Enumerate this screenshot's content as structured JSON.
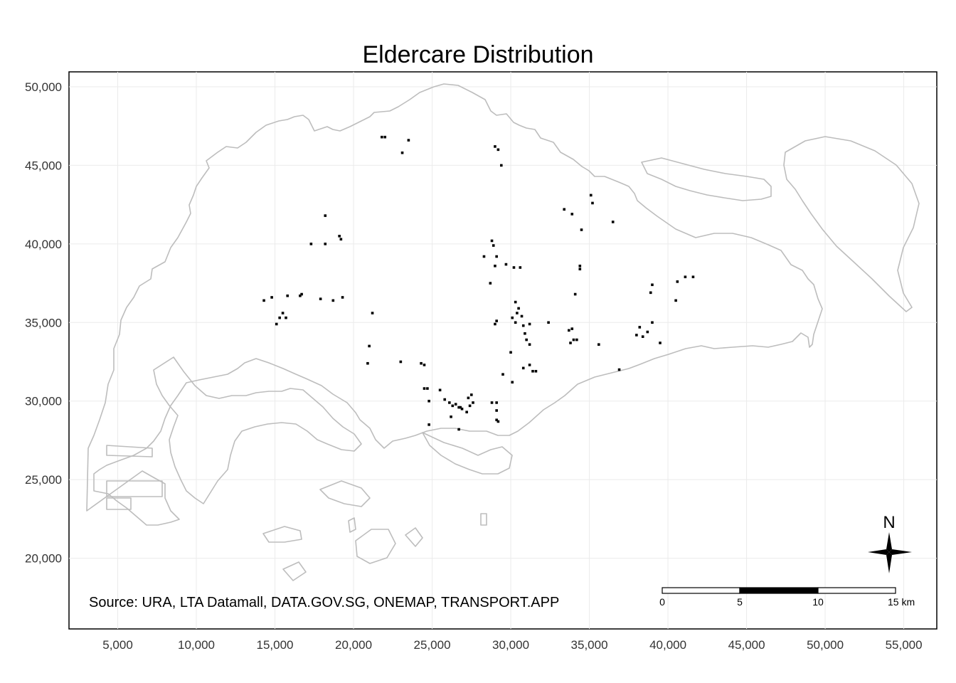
{
  "title": "Eldercare Distribution",
  "source": "Source: URA, LTA Datamall, DATA.GOV.SG, ONEMAP, TRANSPORT.APP",
  "colors": {
    "coastline": "#bdbdbd",
    "grid": "#ebebeb",
    "points": "#000000",
    "frame": "#000000"
  },
  "axes": {
    "x": {
      "range": [
        1900,
        57100
      ],
      "ticks": [
        5000,
        10000,
        15000,
        20000,
        25000,
        30000,
        35000,
        40000,
        45000,
        50000,
        55000
      ],
      "tick_labels": [
        "5,000",
        "10,000",
        "15,000",
        "20,000",
        "25,000",
        "30,000",
        "35,000",
        "40,000",
        "45,000",
        "50,000",
        "55,000"
      ]
    },
    "y": {
      "range": [
        15500,
        50950
      ],
      "ticks": [
        20000,
        25000,
        30000,
        35000,
        40000,
        45000,
        50000
      ],
      "tick_labels": [
        "20,000",
        "25,000",
        "30,000",
        "35,000",
        "40,000",
        "45,000",
        "50,000"
      ]
    },
    "grid": true
  },
  "scale_bar": {
    "labels": [
      "0",
      "5",
      "10",
      "15 km"
    ],
    "segments_km": [
      5,
      5,
      5
    ]
  },
  "north_arrow": {
    "label": "N"
  },
  "chart_data": {
    "type": "scatter",
    "title": "Eldercare Distribution",
    "xlabel": "",
    "ylabel": "",
    "xlim": [
      1900,
      57100
    ],
    "ylim": [
      15500,
      50950
    ],
    "grid": true,
    "points": [
      [
        21800,
        46800
      ],
      [
        22000,
        46800
      ],
      [
        23100,
        45800
      ],
      [
        23500,
        46600
      ],
      [
        29000,
        46200
      ],
      [
        29200,
        46000
      ],
      [
        29400,
        45000
      ],
      [
        35100,
        43100
      ],
      [
        35200,
        42600
      ],
      [
        33400,
        42200
      ],
      [
        33900,
        41900
      ],
      [
        34500,
        40900
      ],
      [
        36500,
        41400
      ],
      [
        18200,
        41800
      ],
      [
        19100,
        40500
      ],
      [
        19200,
        40300
      ],
      [
        17300,
        40000
      ],
      [
        18200,
        40000
      ],
      [
        28800,
        40200
      ],
      [
        28900,
        39900
      ],
      [
        28300,
        39200
      ],
      [
        29100,
        39200
      ],
      [
        29000,
        38600
      ],
      [
        29700,
        38700
      ],
      [
        30200,
        38500
      ],
      [
        30600,
        38500
      ],
      [
        34400,
        38600
      ],
      [
        34400,
        38400
      ],
      [
        28700,
        37500
      ],
      [
        34100,
        36800
      ],
      [
        39000,
        37400
      ],
      [
        38900,
        36900
      ],
      [
        40600,
        37600
      ],
      [
        41100,
        37900
      ],
      [
        41600,
        37900
      ],
      [
        40500,
        36400
      ],
      [
        14300,
        36400
      ],
      [
        14800,
        36600
      ],
      [
        15800,
        36700
      ],
      [
        16600,
        36700
      ],
      [
        16700,
        36800
      ],
      [
        17900,
        36500
      ],
      [
        18700,
        36400
      ],
      [
        19300,
        36600
      ],
      [
        15500,
        35600
      ],
      [
        15300,
        35300
      ],
      [
        15700,
        35300
      ],
      [
        15100,
        34900
      ],
      [
        21200,
        35600
      ],
      [
        30300,
        36300
      ],
      [
        30500,
        35900
      ],
      [
        30400,
        35600
      ],
      [
        30100,
        35300
      ],
      [
        30700,
        35400
      ],
      [
        29100,
        35100
      ],
      [
        29000,
        34900
      ],
      [
        30300,
        35000
      ],
      [
        30800,
        34800
      ],
      [
        31200,
        34900
      ],
      [
        30900,
        34300
      ],
      [
        32400,
        35000
      ],
      [
        31000,
        33900
      ],
      [
        31200,
        33600
      ],
      [
        33700,
        34500
      ],
      [
        33900,
        34600
      ],
      [
        34000,
        33900
      ],
      [
        34200,
        33900
      ],
      [
        33800,
        33700
      ],
      [
        35600,
        33600
      ],
      [
        38200,
        34700
      ],
      [
        38000,
        34200
      ],
      [
        38400,
        34100
      ],
      [
        38700,
        34400
      ],
      [
        39000,
        35000
      ],
      [
        39500,
        33700
      ],
      [
        21000,
        33500
      ],
      [
        20900,
        32400
      ],
      [
        23000,
        32500
      ],
      [
        24300,
        32400
      ],
      [
        24500,
        32300
      ],
      [
        30000,
        33100
      ],
      [
        30800,
        32100
      ],
      [
        31200,
        32300
      ],
      [
        31400,
        31900
      ],
      [
        31600,
        31900
      ],
      [
        29500,
        31700
      ],
      [
        30100,
        31200
      ],
      [
        36900,
        32000
      ],
      [
        24500,
        30800
      ],
      [
        24700,
        30800
      ],
      [
        25500,
        30700
      ],
      [
        24800,
        30000
      ],
      [
        25800,
        30100
      ],
      [
        26100,
        29900
      ],
      [
        26300,
        29700
      ],
      [
        26500,
        29800
      ],
      [
        26700,
        29600
      ],
      [
        26800,
        29600
      ],
      [
        27300,
        30200
      ],
      [
        27500,
        30400
      ],
      [
        27600,
        29900
      ],
      [
        26900,
        29500
      ],
      [
        27200,
        29300
      ],
      [
        26200,
        29000
      ],
      [
        24800,
        28500
      ],
      [
        26700,
        28200
      ],
      [
        28800,
        29900
      ],
      [
        29100,
        29900
      ],
      [
        29100,
        29400
      ],
      [
        29100,
        28800
      ],
      [
        29200,
        28700
      ],
      [
        27400,
        29700
      ]
    ]
  }
}
